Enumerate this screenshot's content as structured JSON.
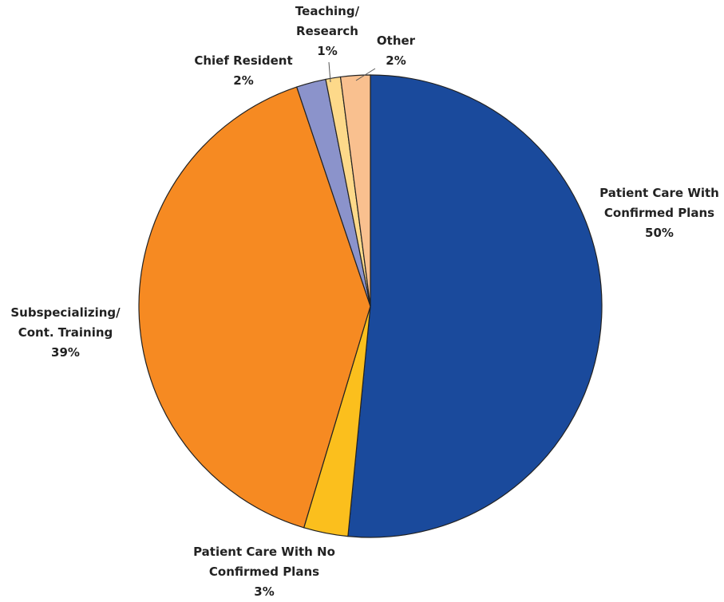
{
  "chart_data": {
    "type": "pie",
    "categories": [
      "Patient Care With Confirmed Plans",
      "Patient Care With No Confirmed Plans",
      "Subspecializing/ Cont. Training",
      "Chief Resident",
      "Teaching/ Research",
      "Other"
    ],
    "values": [
      50,
      3,
      39,
      2,
      1,
      2
    ],
    "value_labels": [
      "50%",
      "3%",
      "39%",
      "2%",
      "1%",
      "2%"
    ],
    "colors": [
      "#1a4a9c",
      "#fbbf1d",
      "#f68a22",
      "#8b93cb",
      "#fdd98a",
      "#f9c08f"
    ]
  }
}
